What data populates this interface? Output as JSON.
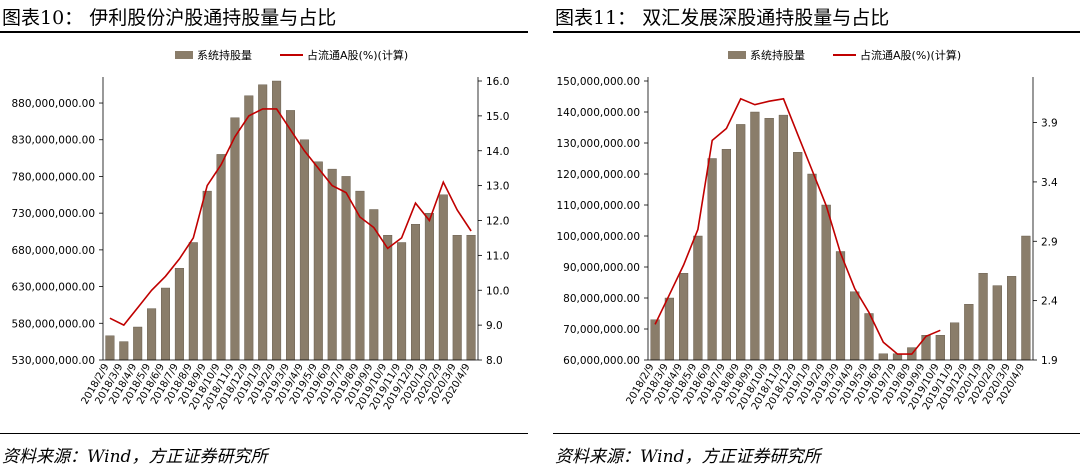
{
  "legend": {
    "bar_label": "系统持股量",
    "line_label": "占流通A股(%)(计算)"
  },
  "colors": {
    "bar": "#8a7d6a",
    "bar_dark": "#5c5141",
    "line": "#c00000",
    "accent": "#000000"
  },
  "source_text": "资料来源：Wind，方正证券研究所",
  "chart_data": [
    {
      "figure_title": "图表10：  伊利股份沪股通持股量与占比",
      "type": "bar+line",
      "y_left": {
        "min": 530000000,
        "max": 910000000,
        "ticks": [
          "530,000,000.00",
          "580,000,000.00",
          "630,000,000.00",
          "680,000,000.00",
          "730,000,000.00",
          "780,000,000.00",
          "830,000,000.00",
          "880,000,000.00"
        ]
      },
      "y_right": {
        "min": 8.0,
        "max": 16.0,
        "ticks": [
          "8.0",
          "9.0",
          "10.0",
          "11.0",
          "12.0",
          "13.0",
          "14.0",
          "15.0",
          "16.0"
        ]
      },
      "x_ticks": [
        "2018/2/9",
        "2018/3/9",
        "2018/4/9",
        "2018/5/9",
        "2018/6/9",
        "2018/7/9",
        "2018/8/9",
        "2018/9/9",
        "2018/10/9",
        "2018/11/9",
        "2018/12/9",
        "2019/1/9",
        "2019/2/9",
        "2019/3/9",
        "2019/4/9",
        "2019/5/9",
        "2019/6/9",
        "2019/7/9",
        "2019/8/9",
        "2019/9/9",
        "2019/10/9",
        "2019/11/9",
        "2019/12/9",
        "2020/1/9",
        "2020/2/9",
        "2020/3/9",
        "2020/4/9"
      ],
      "series": [
        {
          "name": "系统持股量",
          "kind": "bar",
          "values": [
            563000000,
            555000000,
            575000000,
            600000000,
            628000000,
            655000000,
            690000000,
            760000000,
            810000000,
            860000000,
            890000000,
            905000000,
            910000000,
            870000000,
            830000000,
            800000000,
            790000000,
            780000000,
            760000000,
            735000000,
            700000000,
            690000000,
            715000000,
            730000000,
            755000000,
            700000000,
            700000000
          ]
        },
        {
          "name": "占流通A股(%)(计算)",
          "kind": "line",
          "values": [
            9.2,
            9.0,
            9.5,
            10.0,
            10.4,
            10.9,
            11.5,
            13.0,
            13.6,
            14.4,
            15.0,
            15.2,
            15.2,
            14.6,
            14.0,
            13.5,
            13.0,
            12.8,
            12.1,
            11.8,
            11.2,
            11.5,
            12.5,
            12.0,
            13.1,
            12.3,
            11.7
          ]
        }
      ]
    },
    {
      "figure_title": "图表11：  双汇发展深股通持股量与占比",
      "type": "bar+line",
      "y_left": {
        "min": 60000000,
        "max": 150000000,
        "ticks": [
          "60,000,000.00",
          "70,000,000.00",
          "80,000,000.00",
          "90,000,000.00",
          "100,000,000.00",
          "110,000,000.00",
          "120,000,000.00",
          "130,000,000.00",
          "140,000,000.00",
          "150,000,000.00"
        ]
      },
      "y_right": {
        "min": 1.9,
        "max": 4.25,
        "ticks": [
          "1.9",
          "2.4",
          "2.9",
          "3.4",
          "3.9"
        ]
      },
      "x_ticks": [
        "2018/2/9",
        "2018/3/9",
        "2018/4/9",
        "2018/5/9",
        "2018/6/9",
        "2018/7/9",
        "2018/8/9",
        "2018/9/9",
        "2018/10/9",
        "2018/11/9",
        "2018/12/9",
        "2019/1/9",
        "2019/2/9",
        "2019/3/9",
        "2019/4/9",
        "2019/5/9",
        "2019/6/9",
        "2019/7/9",
        "2019/8/9",
        "2019/9/9",
        "2019/10/9",
        "2019/11/9",
        "2019/12/9",
        "2020/1/9",
        "2020/2/9",
        "2020/3/9",
        "2020/4/9"
      ],
      "series": [
        {
          "name": "系统持股量",
          "kind": "bar",
          "values": [
            73000000,
            80000000,
            88000000,
            100000000,
            125000000,
            128000000,
            136000000,
            140000000,
            138000000,
            139000000,
            127000000,
            120000000,
            110000000,
            95000000,
            82000000,
            75000000,
            62000000,
            62000000,
            64000000,
            68000000,
            68000000,
            72000000,
            78000000,
            88000000,
            84000000,
            87000000,
            100000000
          ]
        },
        {
          "name": "占流通A股(%)(计算)",
          "kind": "line",
          "values": [
            2.2,
            2.45,
            2.7,
            3.0,
            3.75,
            3.85,
            4.1,
            4.05,
            4.08,
            4.1,
            3.8,
            3.5,
            3.2,
            2.8,
            2.5,
            2.3,
            2.05,
            1.95,
            1.95,
            2.1,
            2.15,
            null,
            null,
            null,
            null,
            null,
            null
          ]
        }
      ]
    }
  ]
}
